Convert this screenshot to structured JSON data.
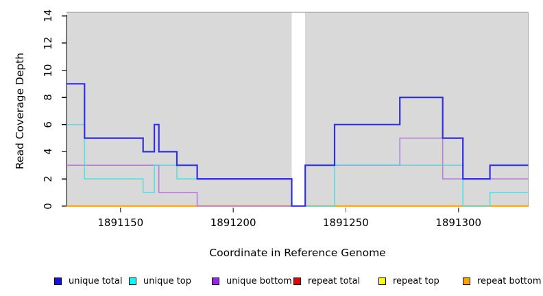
{
  "chart_data": {
    "type": "line",
    "style": "step",
    "xlabel": "Coordinate in Reference Genome",
    "ylabel": "Read Coverage Depth",
    "xlim": [
      1891126,
      1891331
    ],
    "ylim": [
      0,
      14
    ],
    "x_ticks": [
      1891150,
      1891200,
      1891250,
      1891300
    ],
    "y_ticks": [
      0,
      2,
      4,
      6,
      8,
      10,
      12,
      14
    ],
    "plot_bg_color": "#D9D9D9",
    "grid": false,
    "legend_position": "bottom",
    "no_coverage_gap": [
      1891226,
      1891232
    ],
    "background_regions": [
      [
        1891126,
        1891226
      ],
      [
        1891232,
        1891331
      ]
    ],
    "x_end": 1891331,
    "series": [
      {
        "name": "unique total",
        "color": "#3030E2",
        "legend_color": "#1010EE",
        "width": 2.2,
        "opacity": 1,
        "steps": [
          [
            1891126,
            9
          ],
          [
            1891134,
            5
          ],
          [
            1891160,
            4
          ],
          [
            1891165,
            6
          ],
          [
            1891167,
            4
          ],
          [
            1891175,
            3
          ],
          [
            1891184,
            2
          ],
          [
            1891226,
            0
          ],
          [
            1891232,
            3
          ],
          [
            1891245,
            6
          ],
          [
            1891274,
            8
          ],
          [
            1891293,
            5
          ],
          [
            1891302,
            2
          ],
          [
            1891314,
            3
          ]
        ]
      },
      {
        "name": "unique top",
        "color": "#3FDCE3",
        "legend_color": "#00FFFF",
        "width": 1.6,
        "opacity": 0.8,
        "steps": [
          [
            1891126,
            6
          ],
          [
            1891134,
            2
          ],
          [
            1891160,
            1
          ],
          [
            1891165,
            3
          ],
          [
            1891175,
            2
          ],
          [
            1891226,
            0
          ],
          [
            1891245,
            3
          ],
          [
            1891302,
            0
          ],
          [
            1891314,
            1
          ]
        ]
      },
      {
        "name": "unique bottom",
        "color": "#B06CD9",
        "legend_color": "#A020F0",
        "width": 1.6,
        "opacity": 0.85,
        "steps": [
          [
            1891126,
            3
          ],
          [
            1891167,
            1
          ],
          [
            1891184,
            0
          ],
          [
            1891232,
            3
          ],
          [
            1891274,
            5
          ],
          [
            1891293,
            2
          ]
        ]
      },
      {
        "name": "repeat total",
        "color": "#DD0000",
        "legend_color": "#E60000",
        "width": 1.6,
        "opacity": 1,
        "steps": [
          [
            1891126,
            0
          ]
        ]
      },
      {
        "name": "repeat top",
        "color": "#FFFF00",
        "legend_color": "#FFFF00",
        "width": 1.6,
        "opacity": 1,
        "steps": [
          [
            1891126,
            0
          ]
        ]
      },
      {
        "name": "repeat bottom",
        "color": "#FFA500",
        "legend_color": "#FFA500",
        "width": 1.8,
        "opacity": 1,
        "steps": [
          [
            1891126,
            0
          ]
        ]
      }
    ]
  }
}
